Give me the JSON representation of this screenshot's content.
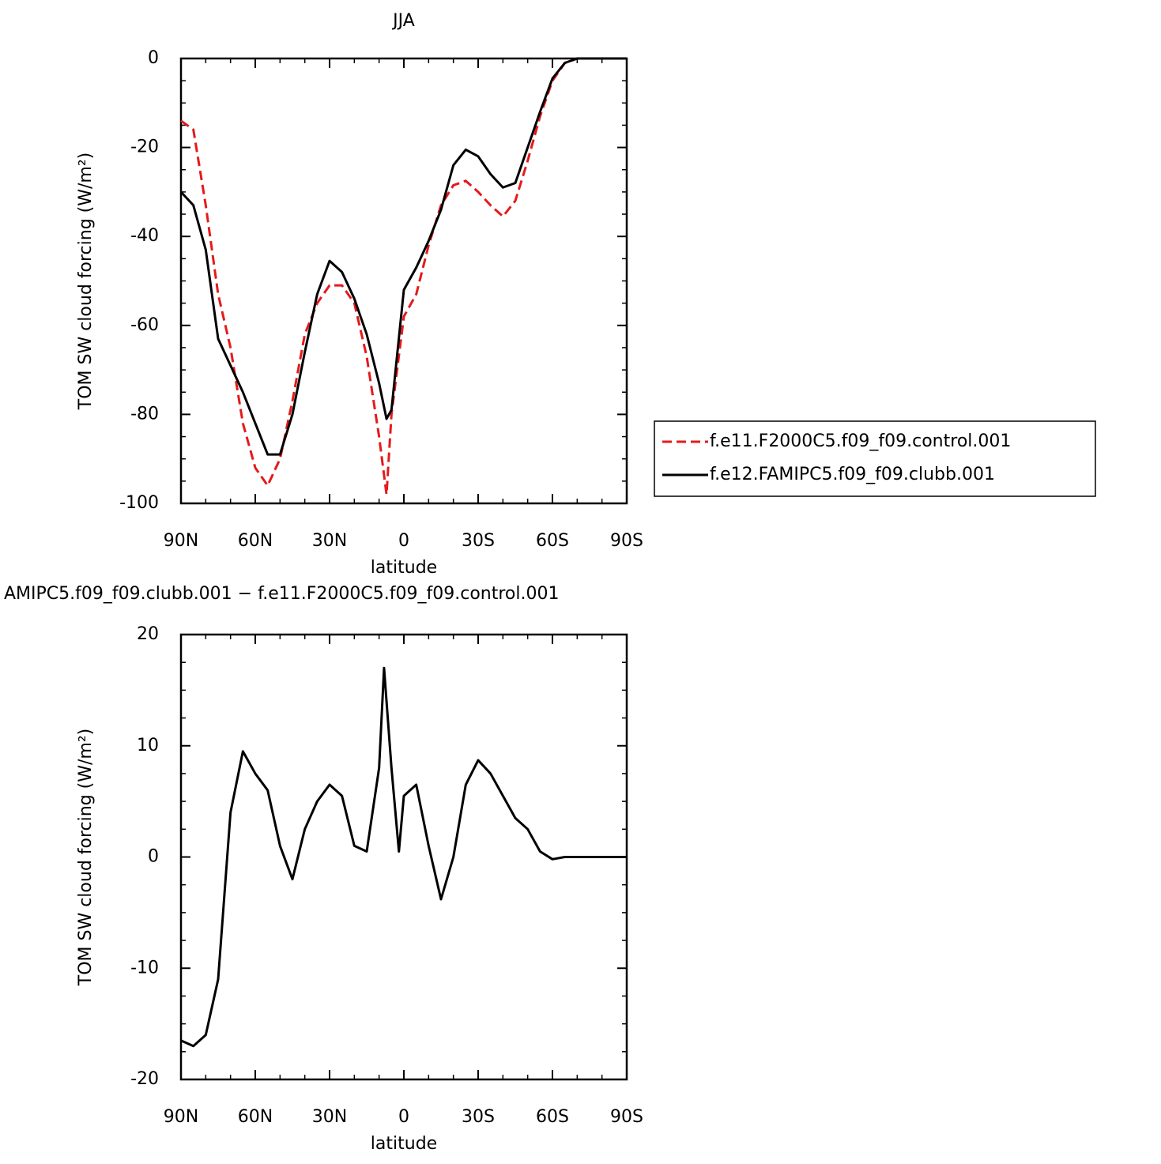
{
  "chart_data": [
    {
      "type": "line",
      "title": "JJA",
      "xlabel": "latitude",
      "ylabel": "TOM SW cloud forcing (W/m²)",
      "x": [
        90,
        85,
        80,
        75,
        70,
        65,
        60,
        55,
        50,
        45,
        40,
        35,
        30,
        25,
        20,
        15,
        10,
        7,
        5,
        0,
        -5,
        -10,
        -15,
        -20,
        -25,
        -30,
        -35,
        -40,
        -45,
        -50,
        -55,
        -60,
        -65,
        -70,
        -75,
        -80,
        -85,
        -90
      ],
      "series": [
        {
          "name": "f.e11.F2000C5.f09_f09.control.001",
          "color": "#e41a1c",
          "dash": true,
          "values": [
            -14,
            -16,
            -33,
            -53,
            -65,
            -82,
            -92,
            -96,
            -90,
            -77,
            -62,
            -55,
            -51,
            -51,
            -55,
            -67,
            -85,
            -98,
            -80,
            -58,
            -53,
            -42,
            -33,
            -28.5,
            -27.5,
            -30,
            -33,
            -35.5,
            -32,
            -23,
            -13,
            -5,
            -1,
            0,
            0,
            0,
            0,
            0
          ]
        },
        {
          "name": "f.e12.FAMIPC5.f09_f09.clubb.001",
          "color": "#000000",
          "dash": false,
          "values": [
            -30,
            -33,
            -43,
            -63,
            -69,
            -75,
            -82,
            -89,
            -89,
            -80,
            -66,
            -53,
            -45.5,
            -48,
            -54,
            -62,
            -73,
            -81,
            -79,
            -52,
            -47,
            -41,
            -34,
            -24,
            -20.5,
            -22,
            -26,
            -29,
            -28,
            -20,
            -12,
            -4.5,
            -1,
            0,
            0,
            0,
            0,
            0
          ]
        }
      ],
      "xlim": [
        90,
        -90
      ],
      "xticks": [
        {
          "value": 90,
          "label": "90N"
        },
        {
          "value": 60,
          "label": "60N"
        },
        {
          "value": 30,
          "label": "30N"
        },
        0,
        {
          "value": -30,
          "label": "30S"
        },
        {
          "value": -60,
          "label": "60S"
        },
        {
          "value": -90,
          "label": "90S"
        }
      ],
      "ylim": [
        -100,
        0
      ],
      "yticks": [
        0,
        -20,
        -40,
        -60,
        -80,
        -100
      ],
      "legend": "right"
    },
    {
      "type": "line",
      "title": "AMIPC5.f09_f09.clubb.001 − f.e11.F2000C5.f09_f09.control.001",
      "xlabel": "latitude",
      "ylabel": "TOM SW cloud forcing (W/m²)",
      "x": [
        90,
        85,
        80,
        75,
        70,
        65,
        60,
        55,
        50,
        45,
        40,
        35,
        30,
        25,
        20,
        15,
        10,
        8,
        5,
        2,
        0,
        -5,
        -10,
        -15,
        -20,
        -25,
        -30,
        -35,
        -40,
        -45,
        -50,
        -55,
        -60,
        -65,
        -70,
        -75,
        -80,
        -85,
        -90
      ],
      "series": [
        {
          "color": "#000000",
          "dash": false,
          "values": [
            -16.5,
            -17,
            -16,
            -11,
            4,
            9.5,
            7.5,
            6,
            1,
            -2,
            2.5,
            5,
            6.5,
            5.5,
            1,
            0.5,
            8,
            17,
            8,
            0.5,
            5.5,
            6.5,
            1,
            -3.8,
            0,
            6.5,
            8.7,
            7.5,
            5.5,
            3.5,
            2.5,
            0.5,
            -0.2,
            0,
            0,
            0,
            0,
            0,
            0
          ]
        }
      ],
      "xlim": [
        90,
        -90
      ],
      "xticks": [
        {
          "value": 90,
          "label": "90N"
        },
        {
          "value": 60,
          "label": "60N"
        },
        {
          "value": 30,
          "label": "30N"
        },
        0,
        {
          "value": -30,
          "label": "30S"
        },
        {
          "value": -60,
          "label": "60S"
        },
        {
          "value": -90,
          "label": "90S"
        }
      ],
      "ylim": [
        -20,
        20
      ],
      "yticks": [
        20,
        10,
        0,
        -10,
        -20
      ]
    }
  ]
}
